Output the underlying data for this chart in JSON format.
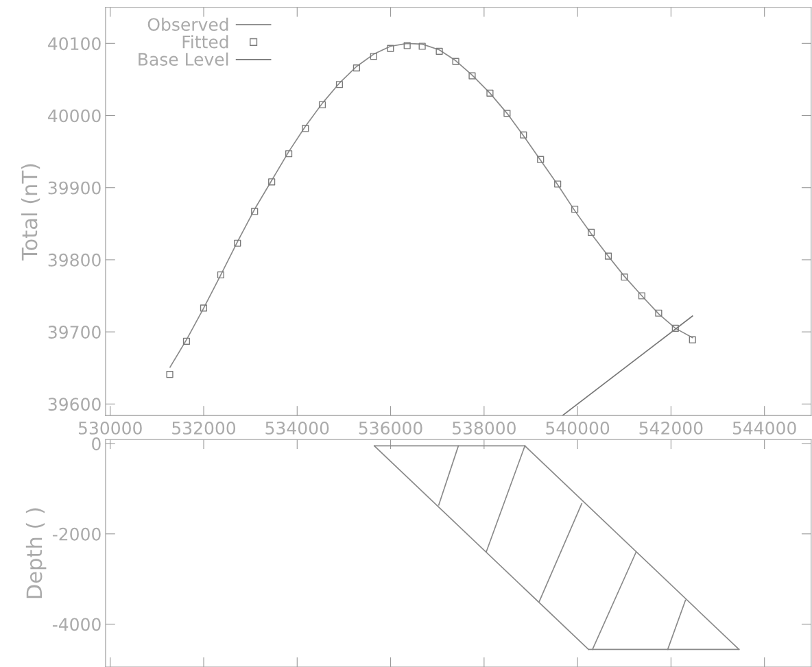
{
  "chart_data": [
    {
      "type": "line",
      "ylabel": "Total (nT)",
      "xlim": [
        529900,
        545000
      ],
      "ylim": [
        39584,
        40150
      ],
      "xticks": [
        530000,
        532000,
        534000,
        536000,
        538000,
        540000,
        542000,
        544000
      ],
      "yticks": [
        39600,
        39700,
        39800,
        39900,
        40000,
        40100
      ],
      "grid": false,
      "legend": "top left",
      "series": [
        {
          "name": "Observed",
          "color": "#8a8a8a",
          "line_style": "solid",
          "marker": "none",
          "x": [
            531280,
            531640,
            532000,
            532365,
            532723,
            533089,
            533455,
            533821,
            534177,
            534539,
            534905,
            535271,
            535637,
            535997,
            536354,
            536676,
            537042,
            537394,
            537745,
            538126,
            538492,
            538843,
            539209,
            539575,
            539941,
            540293,
            540659,
            541003,
            541376,
            541736,
            542094,
            542460
          ],
          "values": [
            39651,
            39690,
            39733,
            39779,
            39825,
            39870,
            39910,
            39950,
            39985,
            40017,
            40045,
            40068,
            40085,
            40096,
            40100,
            40099,
            40091,
            40076,
            40056,
            40031,
            40003,
            39972,
            39938,
            39904,
            39868,
            39836,
            39805,
            39777,
            39750,
            39725,
            39705,
            39692
          ]
        },
        {
          "name": "Fitted",
          "type": "scatter",
          "color": "#7a7a7a",
          "marker": "square",
          "x": [
            531274,
            531632,
            531999,
            532365,
            532723,
            533089,
            533455,
            533821,
            534177,
            534539,
            534905,
            535271,
            535637,
            535997,
            536354,
            536676,
            537042,
            537394,
            537745,
            538126,
            538492,
            538843,
            539209,
            539575,
            539941,
            540293,
            540659,
            541003,
            541376,
            541736,
            542094,
            542460
          ],
          "values": [
            39641,
            39687,
            39733,
            39779,
            39823,
            39867,
            39908,
            39947,
            39982,
            40015,
            40043,
            40066,
            40082,
            40093,
            40097,
            40096,
            40089,
            40075,
            40055,
            40031,
            40003,
            39973,
            39939,
            39905,
            39870,
            39838,
            39805,
            39776,
            39750,
            39726,
            39705,
            39689
          ]
        },
        {
          "name": "Base Level",
          "color": "#777777",
          "line_style": "solid",
          "marker": "none",
          "x": [
            539678,
            542460
          ],
          "values": [
            39584,
            39722
          ]
        }
      ]
    },
    {
      "type": "line",
      "ylabel": "Depth ( )",
      "xlim": [
        529900,
        545000
      ],
      "ylim": [
        -4950,
        90
      ],
      "xticks": [
        530000,
        532000,
        534000,
        536000,
        538000,
        540000,
        542000,
        544000
      ],
      "yticks": [
        0,
        -2000,
        -4000
      ],
      "tick_labels": "y",
      "grid": false,
      "line_style": "solid",
      "marker": "none",
      "series": [
        {
          "color": "#8a8a8a",
          "x": [
            535651,
            538873
          ],
          "values": [
            -50,
            -50
          ]
        },
        {
          "color": "#8a8a8a",
          "x": [
            535651,
            540234
          ],
          "values": [
            -50,
            -4560
          ]
        },
        {
          "color": "#8a8a8a",
          "x": [
            538873,
            543455
          ],
          "values": [
            -50,
            -4560
          ]
        },
        {
          "color": "#8a8a8a",
          "x": [
            540234,
            543455
          ],
          "values": [
            -4560,
            -4560
          ]
        },
        {
          "color": "#8a8a8a",
          "x": [
            537030,
            537450
          ],
          "values": [
            -1360,
            -50
          ]
        },
        {
          "color": "#8a8a8a",
          "x": [
            538050,
            538873
          ],
          "values": [
            -2390,
            -50
          ]
        },
        {
          "color": "#8a8a8a",
          "x": [
            539180,
            540090
          ],
          "values": [
            -3500,
            -1330
          ]
        },
        {
          "color": "#8a8a8a",
          "x": [
            540320,
            541250
          ],
          "values": [
            -4560,
            -2410
          ]
        },
        {
          "color": "#8a8a8a",
          "x": [
            541930,
            542310
          ],
          "values": [
            -4560,
            -3470
          ]
        }
      ]
    }
  ]
}
